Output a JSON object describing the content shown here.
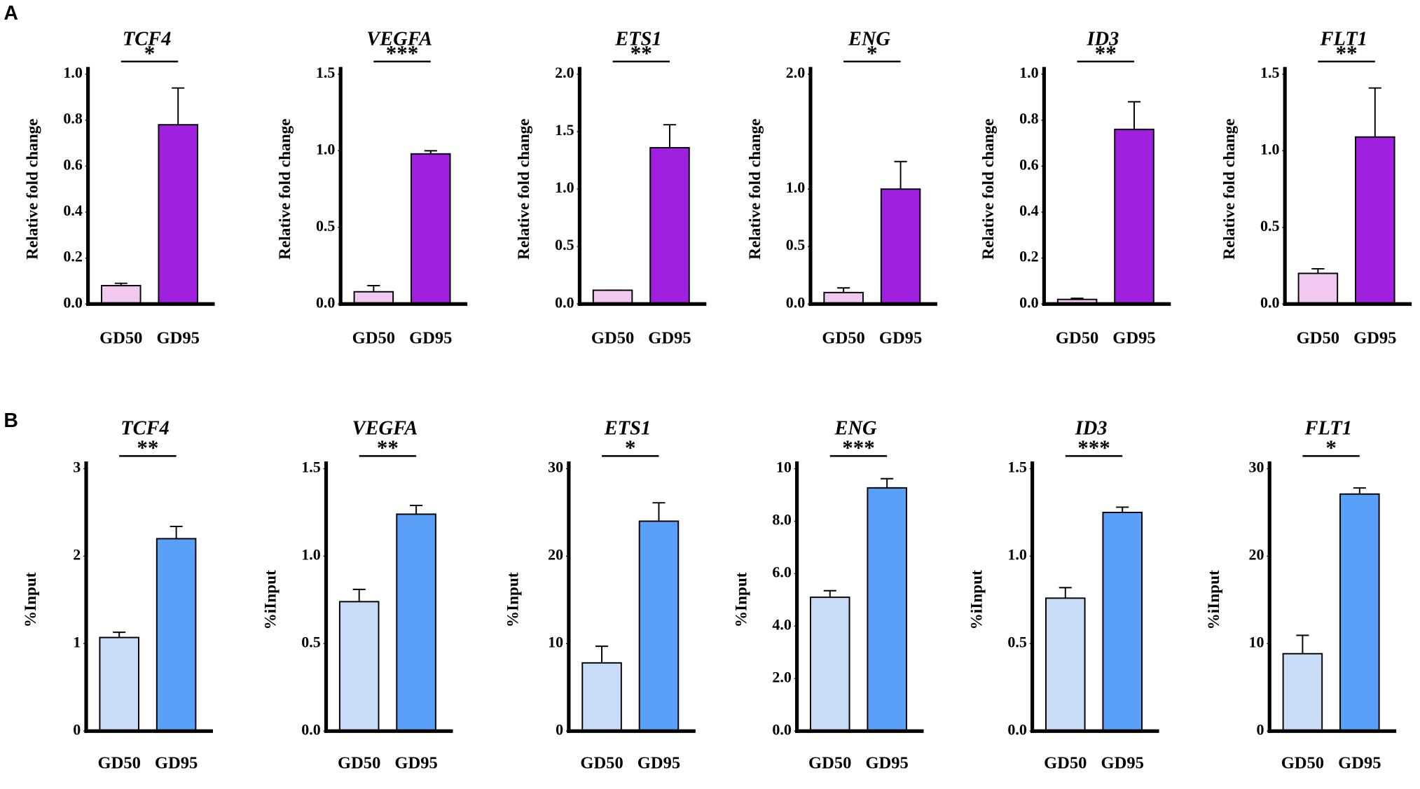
{
  "panel_labels": [
    "A",
    "B"
  ],
  "chart_data": [
    {
      "type": "bar",
      "title": "TCF4",
      "ylabel": "Relative fold change",
      "annotation": "*",
      "categories": [
        "GD50",
        "GD95"
      ],
      "values": [
        0.08,
        0.78
      ],
      "errors": [
        0.01,
        0.16
      ],
      "colors": [
        "#f0c8f0",
        "#a020e0"
      ],
      "ylim": [
        0,
        1.0
      ],
      "yticks": [
        {
          "value": 0,
          "label": "0.0"
        },
        0.2,
        0.4,
        0.6,
        0.8,
        {
          "value": 1.0,
          "label": "1.0"
        }
      ]
    },
    {
      "type": "bar",
      "title": "VEGFA",
      "ylabel": "Relative fold change",
      "annotation": "***",
      "categories": [
        "GD50",
        "GD95"
      ],
      "values": [
        0.08,
        0.98
      ],
      "errors": [
        0.04,
        0.02
      ],
      "colors": [
        "#f0c8f0",
        "#a020e0"
      ],
      "ylim": [
        0,
        1.5
      ],
      "yticks": [
        {
          "value": 0,
          "label": "0.0"
        },
        0.5,
        {
          "value": 1.0,
          "label": "1.0"
        },
        1.5
      ]
    },
    {
      "type": "bar",
      "title": "ETS1",
      "ylabel": "Relative fold change",
      "annotation": "**",
      "categories": [
        "GD50",
        "GD95"
      ],
      "values": [
        0.12,
        1.36
      ],
      "errors": [
        0,
        0.2
      ],
      "colors": [
        "#f0c8f0",
        "#a020e0"
      ],
      "ylim": [
        0,
        2.0
      ],
      "yticks": [
        {
          "value": 0,
          "label": "0.0"
        },
        0.5,
        {
          "value": 1.0,
          "label": "1.0"
        },
        1.5,
        {
          "value": 2.0,
          "label": "2.0"
        }
      ]
    },
    {
      "type": "bar",
      "title": "ENG",
      "ylabel": "Relative fold change",
      "annotation": "*",
      "categories": [
        "GD50",
        "GD95"
      ],
      "values": [
        0.1,
        1.0
      ],
      "errors": [
        0.04,
        0.24
      ],
      "colors": [
        "#f0c8f0",
        "#a020e0"
      ],
      "ylim": [
        0,
        2.0
      ],
      "yticks": [
        {
          "value": 0,
          "label": "0.0"
        },
        0.5,
        {
          "value": 1.0,
          "label": "1.0"
        },
        {
          "value": 2.0,
          "label": "2.0"
        }
      ]
    },
    {
      "type": "bar",
      "title": "ID3",
      "ylabel": "Relative fold change",
      "annotation": "**",
      "categories": [
        "GD50",
        "GD95"
      ],
      "values": [
        0.02,
        0.76
      ],
      "errors": [
        0.005,
        0.12
      ],
      "colors": [
        "#f0c8f0",
        "#a020e0"
      ],
      "ylim": [
        0,
        1.0
      ],
      "yticks": [
        {
          "value": 0,
          "label": "0.0"
        },
        0.2,
        0.4,
        0.6,
        0.8,
        {
          "value": 1.0,
          "label": "1.0"
        }
      ]
    },
    {
      "type": "bar",
      "title": "FLT1",
      "ylabel": "Relative fold change",
      "annotation": "**",
      "categories": [
        "GD50",
        "GD95"
      ],
      "values": [
        0.2,
        1.09
      ],
      "errors": [
        0.03,
        0.32
      ],
      "colors": [
        "#f0c8f0",
        "#a020e0"
      ],
      "ylim": [
        0,
        1.5
      ],
      "yticks": [
        {
          "value": 0,
          "label": "0.0"
        },
        0.5,
        {
          "value": 1.0,
          "label": "1.0"
        },
        1.5
      ]
    },
    {
      "type": "bar",
      "title": "TCF4",
      "ylabel": "%Input",
      "annotation": "**",
      "categories": [
        "GD50",
        "GD95"
      ],
      "values": [
        1.07,
        2.2
      ],
      "errors": [
        0.06,
        0.14
      ],
      "colors": [
        "#c8dcf8",
        "#5aa0f8"
      ],
      "ylim": [
        0,
        3
      ],
      "yticks": [
        0,
        1,
        2,
        3
      ]
    },
    {
      "type": "bar",
      "title": "VEGFA",
      "ylabel": "%iInput",
      "annotation": "**",
      "categories": [
        "GD50",
        "GD95"
      ],
      "values": [
        0.74,
        1.24
      ],
      "errors": [
        0.07,
        0.05
      ],
      "colors": [
        "#c8dcf8",
        "#5aa0f8"
      ],
      "ylim": [
        0,
        1.5
      ],
      "yticks": [
        {
          "value": 0,
          "label": "0.0"
        },
        0.5,
        {
          "value": 1.0,
          "label": "1.0"
        },
        1.5
      ]
    },
    {
      "type": "bar",
      "title": "ETS1",
      "ylabel": "%Input",
      "annotation": "*",
      "categories": [
        "GD50",
        "GD95"
      ],
      "values": [
        7.8,
        24
      ],
      "errors": [
        1.9,
        2.1
      ],
      "colors": [
        "#c8dcf8",
        "#5aa0f8"
      ],
      "ylim": [
        0,
        30
      ],
      "yticks": [
        0,
        10,
        20,
        30
      ]
    },
    {
      "type": "bar",
      "title": "ENG",
      "ylabel": "%Input",
      "annotation": "***",
      "categories": [
        "GD50",
        "GD95"
      ],
      "values": [
        5.1,
        9.27
      ],
      "errors": [
        0.25,
        0.35
      ],
      "colors": [
        "#c8dcf8",
        "#5aa0f8"
      ],
      "ylim": [
        0,
        10
      ],
      "yticks": [
        {
          "value": 0,
          "label": "0.0"
        },
        {
          "value": 2,
          "label": "2.0"
        },
        {
          "value": 4,
          "label": "4.0"
        },
        {
          "value": 6,
          "label": "6.0"
        },
        {
          "value": 8,
          "label": "8.0"
        },
        10
      ]
    },
    {
      "type": "bar",
      "title": "ID3",
      "ylabel": "%iInput",
      "annotation": "***",
      "categories": [
        "GD50",
        "GD95"
      ],
      "values": [
        0.76,
        1.25
      ],
      "errors": [
        0.06,
        0.03
      ],
      "colors": [
        "#c8dcf8",
        "#5aa0f8"
      ],
      "ylim": [
        0,
        1.5
      ],
      "yticks": [
        {
          "value": 0,
          "label": "0.0"
        },
        0.5,
        {
          "value": 1.0,
          "label": "1.0"
        },
        1.5
      ]
    },
    {
      "type": "bar",
      "title": "FLT1",
      "ylabel": "%iInput",
      "annotation": "*",
      "categories": [
        "GD50",
        "GD95"
      ],
      "values": [
        8.85,
        27.1
      ],
      "errors": [
        2.1,
        0.7
      ],
      "colors": [
        "#c8dcf8",
        "#5aa0f8"
      ],
      "ylim": [
        0,
        30
      ],
      "yticks": [
        0,
        10,
        20,
        30
      ]
    }
  ]
}
